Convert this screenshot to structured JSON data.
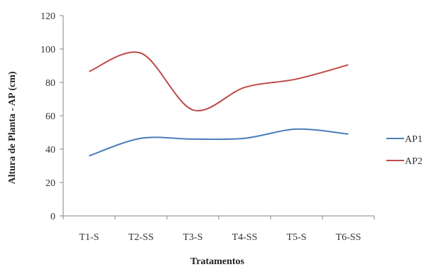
{
  "chart_data": {
    "type": "line",
    "title": "",
    "xlabel": "Tratamentos",
    "ylabel": "Altura de Planta - AP  (cm)",
    "categories": [
      "T1-S",
      "T2-SS",
      "T3-S",
      "T4-SS",
      "T5-S",
      "T6-SS"
    ],
    "ylim": [
      0,
      120
    ],
    "yticks": [
      "0",
      "20",
      "40",
      "60",
      "80",
      "100",
      "120"
    ],
    "grid": false,
    "legend_position": "right",
    "smooth": true,
    "series": [
      {
        "name": "AP1",
        "color": "#4a7ebb",
        "values": [
          36,
          46.5,
          46,
          46.5,
          52,
          49
        ]
      },
      {
        "name": "AP2",
        "color": "#be4b48",
        "values": [
          86.5,
          97.5,
          63.5,
          77,
          82,
          90.5
        ]
      }
    ]
  }
}
